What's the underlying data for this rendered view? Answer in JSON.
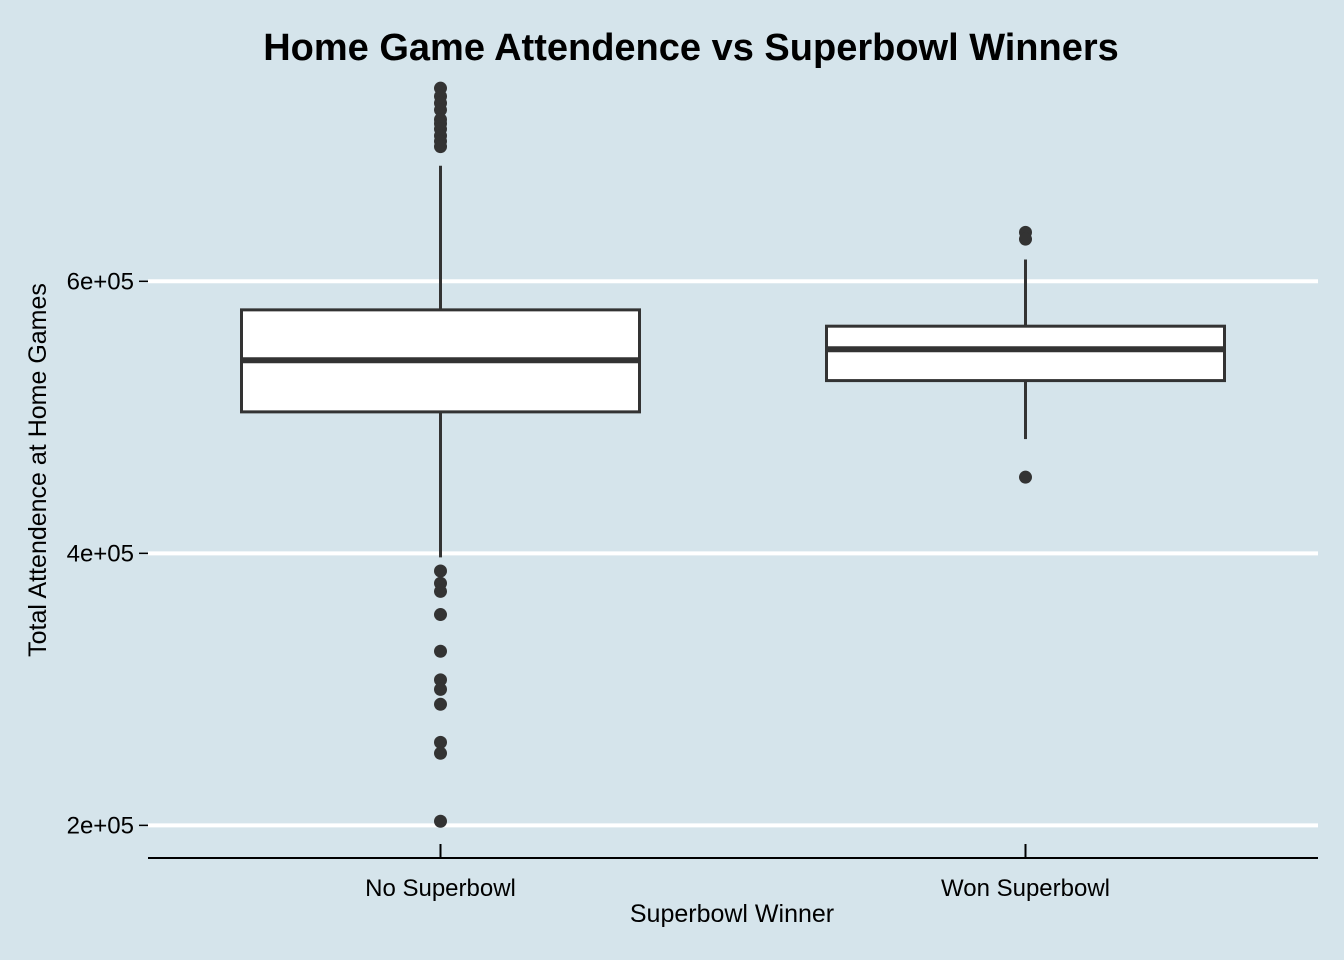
{
  "chart_data": {
    "type": "boxplot",
    "title": "Home Game Attendence vs Superbowl Winners",
    "xlabel": "Superbowl Winner",
    "ylabel": "Total Attendence at Home Games",
    "ylim": [
      176000,
      748000
    ],
    "y_ticks": [
      200000,
      400000,
      600000
    ],
    "y_tick_labels": [
      "2e+05",
      "4e+05",
      "6e+05"
    ],
    "grid": "horizontal major lines",
    "legend": "none",
    "categories": [
      "No Superbowl",
      "Won Superbowl"
    ],
    "series": [
      {
        "category": "No Superbowl",
        "whisker_low": 397000,
        "q1": 504000,
        "median": 542000,
        "q3": 579000,
        "whisker_high": 685000,
        "outliers": [
          742000,
          736000,
          731000,
          726000,
          719000,
          716000,
          712000,
          707000,
          703000,
          699000,
          387000,
          378000,
          372000,
          355000,
          328000,
          307000,
          300000,
          289000,
          261000,
          253000,
          203000
        ]
      },
      {
        "category": "Won Superbowl",
        "whisker_low": 484000,
        "q1": 527000,
        "median": 550000,
        "q3": 567000,
        "whisker_high": 616000,
        "outliers": [
          636000,
          631000,
          456000
        ]
      }
    ]
  },
  "colors": {
    "background": "#d5e4eb",
    "grid": "#ffffff",
    "box_fill": "#ffffff",
    "box_stroke": "#333333",
    "outlier": "#333333",
    "axis_line": "#000000"
  }
}
